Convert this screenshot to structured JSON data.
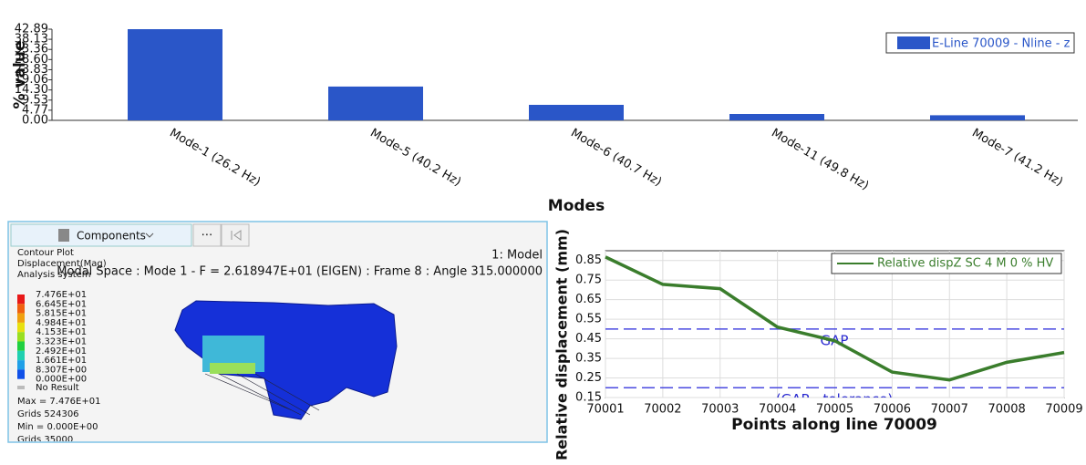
{
  "chart_data": [
    {
      "type": "bar",
      "title_y": "% value",
      "title_x": "Modes",
      "categories": [
        "Mode-1 (26.2 Hz)",
        "Mode-5 (40.2 Hz)",
        "Mode-6 (40.7 Hz)",
        "Mode-11 (49.8 Hz)",
        "Mode-7 (41.2 Hz)"
      ],
      "series": [
        {
          "name": "E-Line 70009 - Nline - z",
          "color": "#2a56c8",
          "values": [
            42.89,
            15.9,
            7.3,
            3.0,
            2.4
          ]
        }
      ],
      "ylim": [
        0,
        42.89
      ],
      "yticks": [
        {
          "value": 0,
          "label": "0.00"
        },
        4.77,
        9.53,
        {
          "value": 14.3,
          "label": "14.30"
        },
        19.06,
        23.83,
        {
          "value": 28.6,
          "label": "28.60"
        },
        33.36,
        38.13,
        42.89
      ],
      "legend": "upper right"
    },
    {
      "type": "line",
      "title_y": "Relative displacement (mm)",
      "title_x": "Points along line 70009",
      "x": [
        70001,
        70002,
        70003,
        70004,
        70005,
        70006,
        70007,
        70008,
        70009
      ],
      "series": [
        {
          "name": "Relative dispZ SC 4 M 0 % HV",
          "color": "#3a7d2c",
          "values": [
            0.868,
            0.728,
            0.706,
            0.51,
            0.44,
            0.28,
            0.24,
            0.33,
            0.38
          ]
        }
      ],
      "reference_lines": [
        {
          "value": 0.5,
          "label": "GAP"
        },
        {
          "value": 0.2,
          "label": "(GAP - tolerance)"
        }
      ],
      "xlim": [
        70001,
        70009
      ],
      "xticks": [
        70001,
        70002,
        70003,
        70004,
        70005,
        70006,
        70007,
        70008,
        70009
      ],
      "ylim": [
        0.15,
        0.9
      ],
      "yticks": [
        0.15,
        0.25,
        0.35,
        0.45,
        0.55,
        0.65,
        0.75,
        0.85
      ],
      "grid": true,
      "legend": "upper right"
    }
  ],
  "viewer": {
    "toolbar": "Components",
    "title_lines": [
      "Contour Plot",
      "Displacement(Mag)",
      "Analysis system"
    ],
    "model": "1: Model",
    "subtitle": "Modal Space : Mode 1 - F = 2.618947E+01 (EIGEN) : Frame 8 : Angle 315.000000",
    "legend_values": [
      "7.476E+01",
      "6.645E+01",
      "5.815E+01",
      "4.984E+01",
      "4.153E+01",
      "3.323E+01",
      "2.492E+01",
      "1.661E+01",
      "8.307E+00",
      "0.000E+00"
    ],
    "no_result": "No Result",
    "footer": [
      "Max = 7.476E+01",
      "Grids 524306",
      "Min = 0.000E+00",
      "Grids 35000"
    ]
  }
}
